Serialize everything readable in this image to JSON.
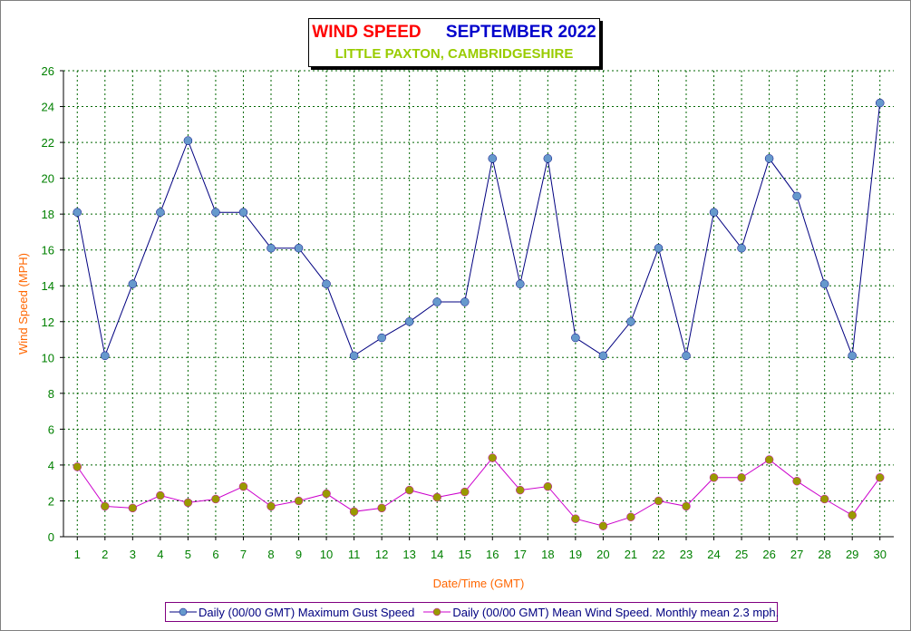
{
  "chart_data": {
    "type": "line",
    "title": "WIND SPEED",
    "title_period": "SEPTEMBER 2022",
    "subtitle": "LITTLE PAXTON, CAMBRIDGESHIRE",
    "xlabel": "Date/Time (GMT)",
    "ylabel": "Wind Speed (MPH)",
    "ylim": [
      0,
      26
    ],
    "yticks": [
      "0",
      "2",
      "4",
      "6",
      "8",
      "10",
      "12",
      "14",
      "16",
      "18",
      "20",
      "22",
      "24",
      "26"
    ],
    "categories": [
      "1",
      "2",
      "3",
      "4",
      "5",
      "6",
      "7",
      "8",
      "9",
      "10",
      "11",
      "12",
      "13",
      "14",
      "15",
      "16",
      "17",
      "18",
      "19",
      "20",
      "21",
      "22",
      "23",
      "24",
      "25",
      "26",
      "27",
      "28",
      "29",
      "30"
    ],
    "grid": true,
    "legend_position": "bottom",
    "series": [
      {
        "name": "Daily (00/00 GMT) Maximum Gust Speed",
        "line_color": "#000080",
        "marker_color": "#6699cc",
        "values": [
          18.1,
          10.1,
          14.1,
          18.1,
          22.1,
          18.1,
          18.1,
          16.1,
          16.1,
          14.1,
          10.1,
          11.1,
          12.0,
          13.1,
          13.1,
          21.1,
          14.1,
          21.1,
          11.1,
          10.1,
          12.0,
          16.1,
          10.1,
          18.1,
          16.1,
          21.1,
          19.0,
          14.1,
          10.1,
          24.2
        ]
      },
      {
        "name": "Daily (00/00 GMT) Mean Wind Speed. Monthly mean 2.3 mph.",
        "line_color": "#cc00cc",
        "marker_color": "#999900",
        "values": [
          3.9,
          1.7,
          1.6,
          2.3,
          1.9,
          2.1,
          2.8,
          1.7,
          2.0,
          2.4,
          1.4,
          1.6,
          2.6,
          2.2,
          2.5,
          4.4,
          2.6,
          2.8,
          1.0,
          0.6,
          1.1,
          2.0,
          1.7,
          3.3,
          3.3,
          4.3,
          3.1,
          2.1,
          1.2,
          3.3
        ]
      }
    ],
    "colors": {
      "tick_label": "#008000",
      "axis_title": "#ff6600",
      "grid": "#006600"
    }
  }
}
